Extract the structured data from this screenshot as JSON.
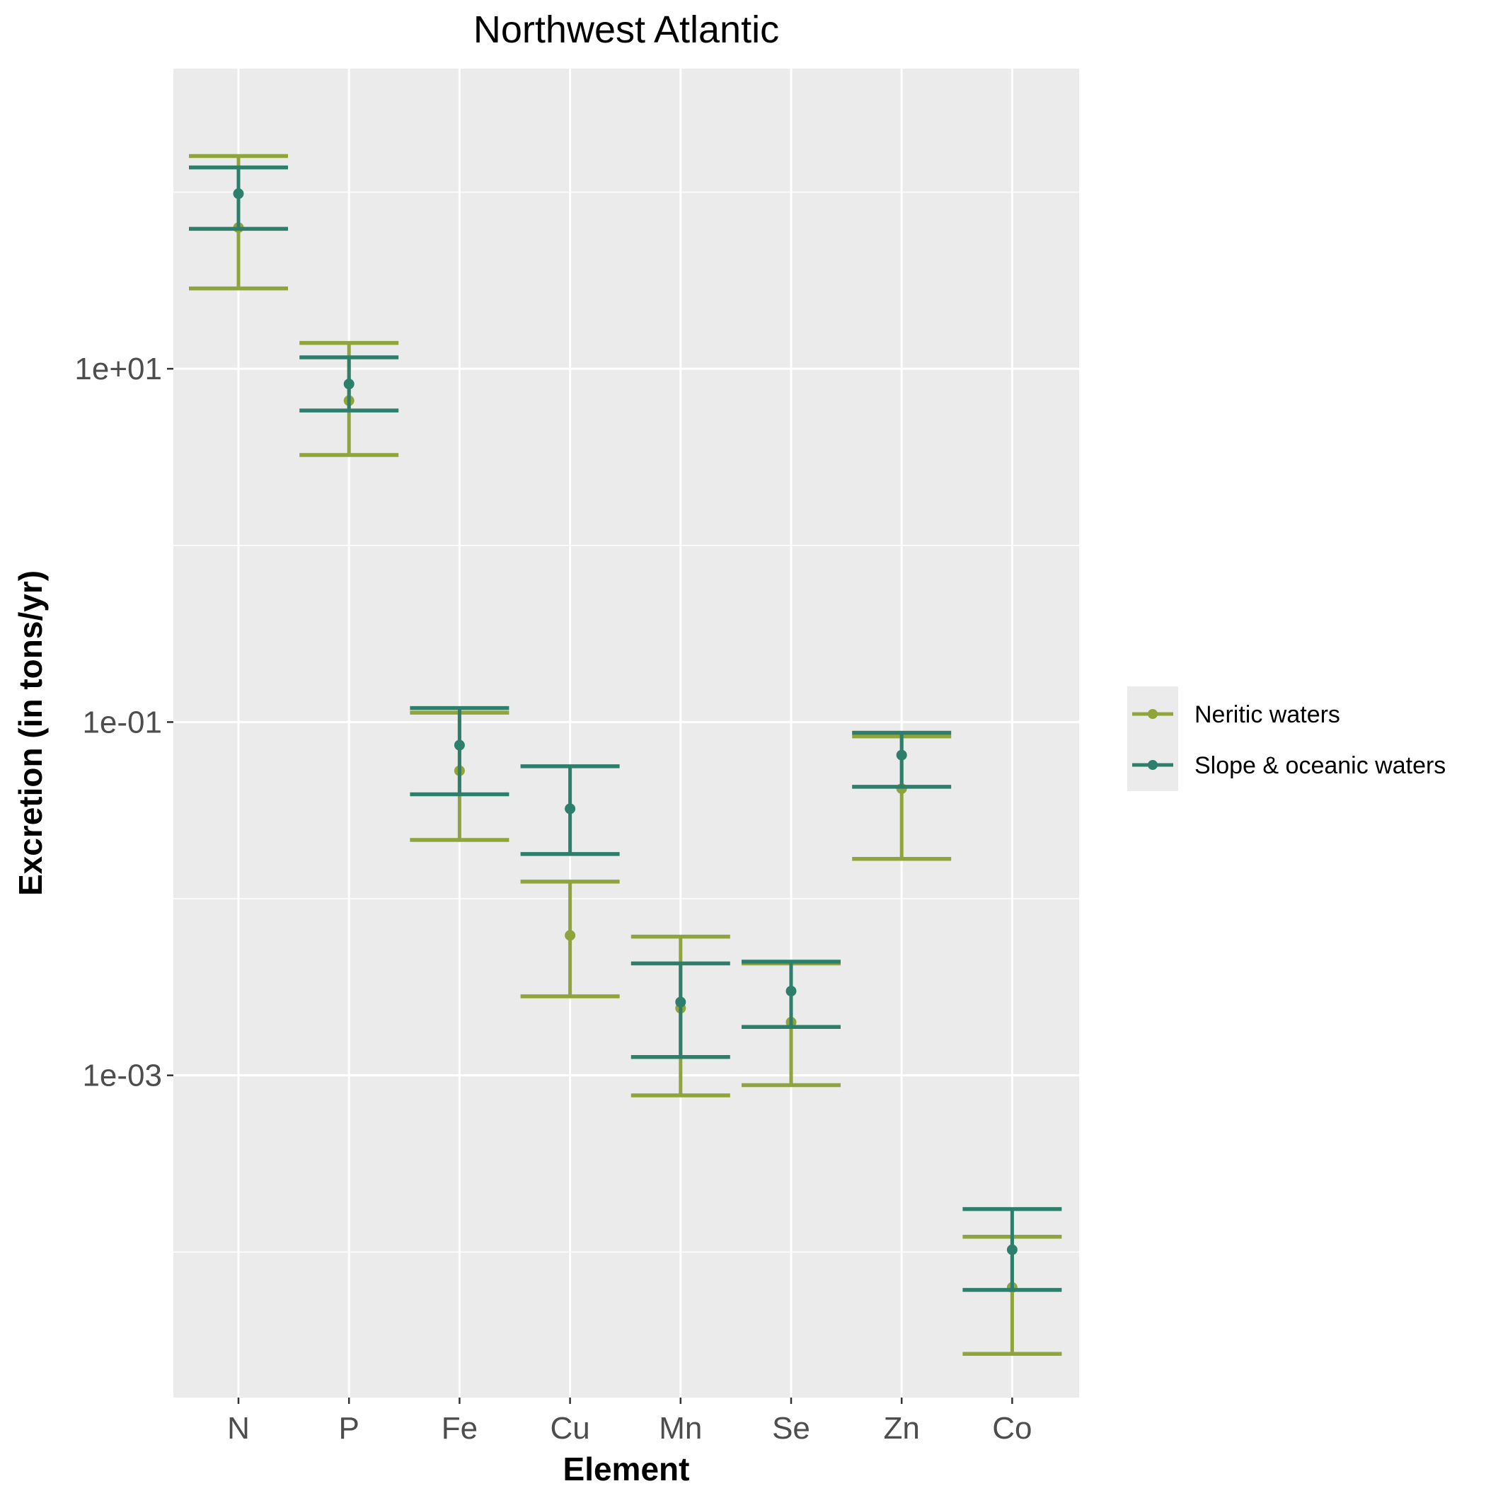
{
  "chart_data": {
    "type": "errorbar",
    "title": "Northwest Atlantic",
    "xlabel": "Element",
    "ylabel": "Excretion (in tons/yr)",
    "y_scale": "log10",
    "ylim": [
      1.5e-05,
      500
    ],
    "y_ticks": [
      {
        "value": 10,
        "label": "1e+01"
      },
      {
        "value": 0.1,
        "label": "1e-01"
      },
      {
        "value": 0.001,
        "label": "1e-03"
      }
    ],
    "grid": true,
    "legend_position": "right",
    "categories": [
      "N",
      "P",
      "Fe",
      "Cu",
      "Mn",
      "Se",
      "Zn",
      "Co"
    ],
    "series": [
      {
        "name": "Neritic waters",
        "color": "#8fa43a",
        "points": [
          {
            "x": "N",
            "y": 63,
            "ymin": 28.5,
            "ymax": 160
          },
          {
            "x": "P",
            "y": 6.6,
            "ymin": 3.25,
            "ymax": 14
          },
          {
            "x": "Fe",
            "y": 0.053,
            "ymin": 0.0215,
            "ymax": 0.113
          },
          {
            "x": "Cu",
            "y": 0.0062,
            "ymin": 0.0028,
            "ymax": 0.0125
          },
          {
            "x": "Mn",
            "y": 0.0024,
            "ymin": 0.00077,
            "ymax": 0.0061
          },
          {
            "x": "Se",
            "y": 0.002,
            "ymin": 0.00088,
            "ymax": 0.0043
          },
          {
            "x": "Zn",
            "y": 0.042,
            "ymin": 0.0168,
            "ymax": 0.083
          },
          {
            "x": "Co",
            "y": 6.3e-05,
            "ymin": 2.65e-05,
            "ymax": 0.000122
          }
        ]
      },
      {
        "name": "Slope & oceanic waters",
        "color": "#2d7f6c",
        "points": [
          {
            "x": "N",
            "y": 98,
            "ymin": 62,
            "ymax": 138
          },
          {
            "x": "P",
            "y": 8.2,
            "ymin": 5.8,
            "ymax": 11.6
          },
          {
            "x": "Fe",
            "y": 0.074,
            "ymin": 0.039,
            "ymax": 0.12
          },
          {
            "x": "Cu",
            "y": 0.0323,
            "ymin": 0.0179,
            "ymax": 0.0562
          },
          {
            "x": "Mn",
            "y": 0.0026,
            "ymin": 0.00127,
            "ymax": 0.0043
          },
          {
            "x": "Se",
            "y": 0.003,
            "ymin": 0.00188,
            "ymax": 0.0044
          },
          {
            "x": "Zn",
            "y": 0.065,
            "ymin": 0.043,
            "ymax": 0.087
          },
          {
            "x": "Co",
            "y": 0.000103,
            "ymin": 6.1e-05,
            "ymax": 0.000175
          }
        ]
      }
    ]
  }
}
